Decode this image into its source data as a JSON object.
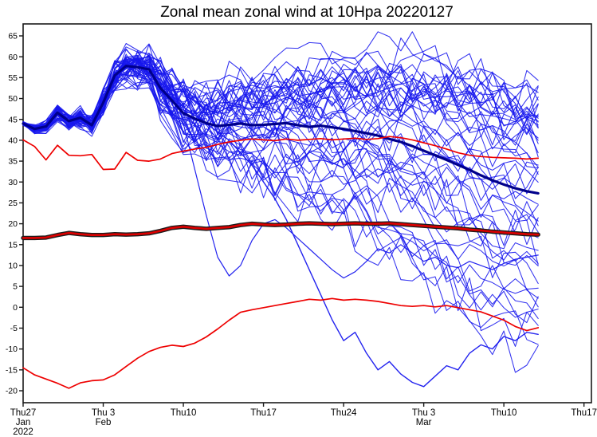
{
  "title": "Zonal mean zonal wind at 10Hpa 20220127",
  "chart_data": {
    "type": "line",
    "title": "Zonal mean zonal wind at 10Hpa 20220127",
    "grid": false,
    "legend": "none",
    "x_axis": {
      "unit": "date (daily values, starting Thu 27 Jan 2022)",
      "tick_week_positions": [
        0,
        7,
        14,
        21,
        28,
        35,
        42,
        49
      ],
      "tick_labels": [
        {
          "day": "Thu27",
          "month": "Jan",
          "year": "2022"
        },
        {
          "day": "Thu 3",
          "month": "Feb"
        },
        {
          "day": "Thu10"
        },
        {
          "day": "Thu17"
        },
        {
          "day": "Thu24"
        },
        {
          "day": "Thu 3",
          "month": "Mar"
        },
        {
          "day": "Thu10"
        },
        {
          "day": "Thu17"
        }
      ],
      "frame_days": 49.65,
      "data_days": 46
    },
    "y_axis": {
      "min": -20,
      "max": 65,
      "step": 5,
      "frame_min": -22.9,
      "frame_max": 67.9
    },
    "series": [
      {
        "name": "ensemble mean",
        "role": "ensemble-mean",
        "color": "#00008b",
        "width": 3.2,
        "values": [
          44,
          42.7,
          43.3,
          46.6,
          44.6,
          45.4,
          43.6,
          49,
          55.5,
          57.8,
          57.5,
          57,
          52.5,
          49.5,
          46.5,
          45.2,
          44.1,
          43.4,
          43.7,
          44,
          43.6,
          43.7,
          43.9,
          44.1,
          43.6,
          43.2,
          43.5,
          43.1,
          42.7,
          42.2,
          41.7,
          41.1,
          40.3,
          39.6,
          38.6,
          37.5,
          36.4,
          35.3,
          34.1,
          32.9,
          31.6,
          30.4,
          29.4,
          28.5,
          27.8,
          27.3
        ]
      },
      {
        "name": "climatology upper bound",
        "role": "climatology-upper",
        "color": "#ee0000",
        "width": 1.7,
        "values": [
          40.1,
          38.5,
          35.3,
          38.8,
          36.4,
          36.3,
          36.6,
          33,
          33.1,
          37.1,
          35.2,
          35,
          35.5,
          36.8,
          37.4,
          37.9,
          38.3,
          39,
          39.6,
          40,
          40.3,
          40.1,
          39.9,
          40.3,
          40,
          40.2,
          40.4,
          40.1,
          40.3,
          40.5,
          40.2,
          40.4,
          40.9,
          40.6,
          40.1,
          39.4,
          38.7,
          37.9,
          37,
          36.4,
          36.1,
          35.9,
          35.8,
          35.7,
          35.5,
          35.7
        ]
      },
      {
        "name": "climatology mean",
        "role": "climatology-mean",
        "color": "#dd0000",
        "width": 2.6,
        "outline_color": "#1c1c1c",
        "outline_width": 5.4,
        "values": [
          16.6,
          16.6,
          16.7,
          17.3,
          17.8,
          17.5,
          17.3,
          17.3,
          17.5,
          17.4,
          17.5,
          17.7,
          18.3,
          19,
          19.3,
          19,
          18.8,
          19,
          19.2,
          19.7,
          20,
          19.8,
          19.7,
          19.8,
          20,
          20.1,
          20,
          19.9,
          20,
          20.1,
          20,
          20,
          20.1,
          19.9,
          19.7,
          19.5,
          19.3,
          19.1,
          18.9,
          18.6,
          18.4,
          18.1,
          17.9,
          17.7,
          17.5,
          17.4
        ]
      },
      {
        "name": "climatology lower bound",
        "role": "climatology-lower",
        "color": "#ee0000",
        "width": 1.7,
        "values": [
          -14.5,
          -16.2,
          -17.2,
          -18.2,
          -19.4,
          -18.1,
          -17.6,
          -17.4,
          -16.2,
          -14.2,
          -12.2,
          -10.6,
          -9.6,
          -9.1,
          -9.4,
          -8.6,
          -7.1,
          -5.2,
          -3.1,
          -1.2,
          -0.6,
          -0.1,
          0.4,
          0.9,
          1.4,
          1.9,
          1.7,
          2.1,
          1.7,
          1.9,
          1.7,
          1.4,
          0.9,
          0.4,
          0.2,
          0.4,
          0.1,
          0.4,
          -0.1,
          -0.6,
          -1.1,
          -2.1,
          -3.1,
          -4.6,
          -5.6,
          -4.9
        ]
      },
      {
        "name": "ensemble member (early decline outlier)",
        "role": "member-early-decline",
        "color": "#1717ee",
        "width": 1.2,
        "values": [
          44,
          42.7,
          43.4,
          46.8,
          44.8,
          45.6,
          43.8,
          49.5,
          56,
          58.5,
          59.5,
          60,
          59,
          54,
          44,
          33,
          22,
          12,
          7.5,
          10,
          16,
          20,
          21,
          19,
          16.5,
          14,
          11.5,
          9,
          7,
          8.5,
          11,
          14,
          13,
          15,
          13,
          11,
          12,
          10,
          9.5,
          11,
          10,
          9,
          10.5,
          11.5,
          12,
          12.5
        ]
      },
      {
        "name": "ensemble member (late deep decline outlier)",
        "role": "member-late-decline",
        "color": "#1717ee",
        "width": 1.4,
        "values": [
          43.8,
          42.5,
          43.2,
          46.4,
          44.4,
          45.2,
          43.4,
          48.5,
          55,
          57.5,
          58,
          57.5,
          54,
          50,
          48,
          46,
          44,
          42,
          40,
          37,
          34,
          30,
          26,
          21,
          15,
          9,
          3,
          -3,
          -8,
          -6,
          -11,
          -15,
          -13,
          -16,
          -18,
          -19,
          -16.5,
          -14,
          -15,
          -11,
          -9,
          -10,
          -7,
          -8,
          -6,
          -6.5
        ]
      }
    ],
    "ensemble_members": {
      "count": 50,
      "color": "#1717ee",
      "width": 1.05,
      "opacity": 0.88,
      "seed": 20220127,
      "start_value": 44,
      "start_spread": 0.5,
      "value_clamp": [
        -19.3,
        66
      ],
      "note": "thin blue spaghetti of ensemble trajectories; regenerated procedurally to match the plotted spread"
    }
  }
}
